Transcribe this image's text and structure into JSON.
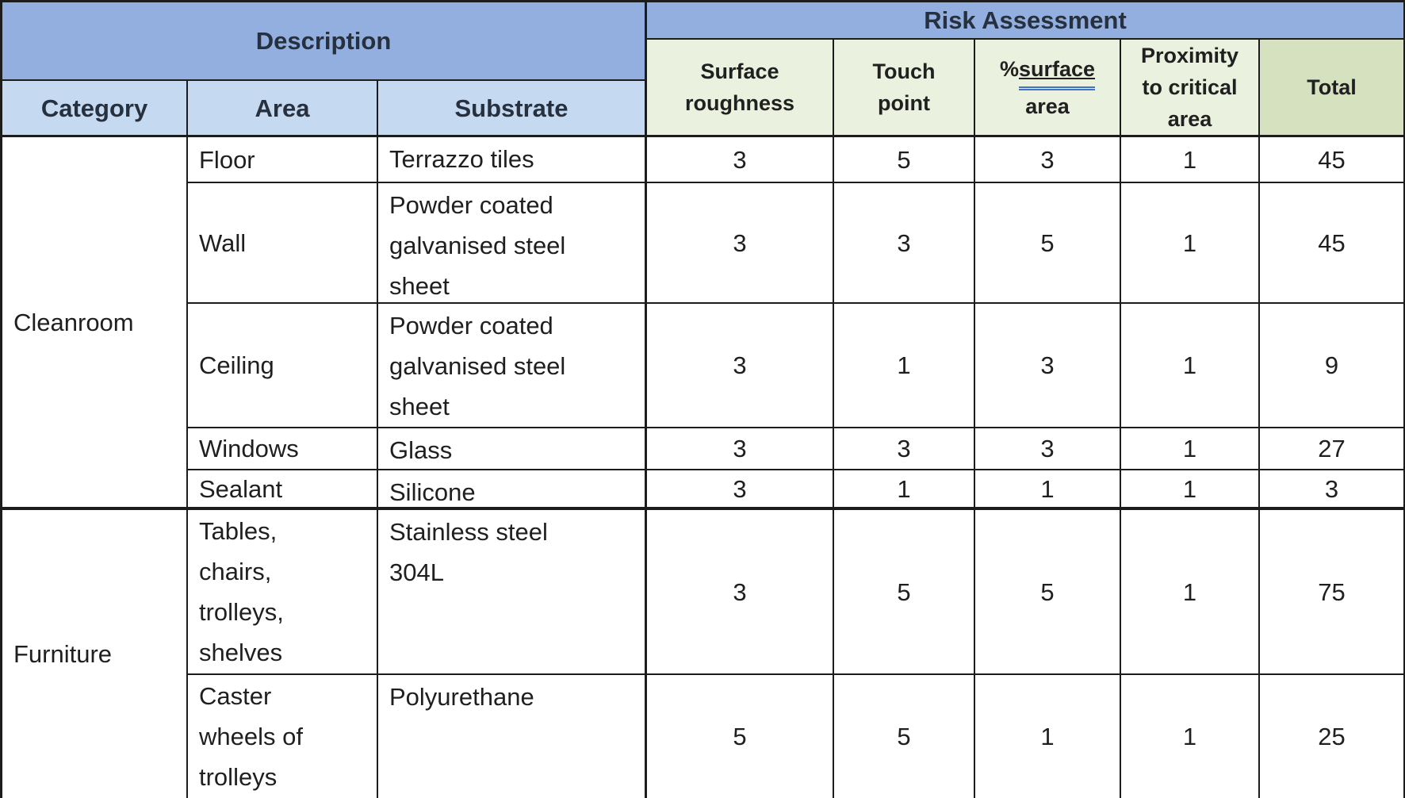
{
  "colors": {
    "header-blue": "#92AFDF",
    "subheader-blue": "#C5D9F1",
    "subheader-green": "#EAF1DE",
    "total-green": "#D6E2BF",
    "border": "#1C1C1C",
    "text": "#1F1F1F",
    "grammar-blue": "#4472C4",
    "cell-bg": "#FFFFFF"
  },
  "header": {
    "description": "Description",
    "risk_assessment": "Risk Assessment",
    "category": "Category",
    "area": "Area",
    "substrate": "Substrate",
    "surface_roughness": "Surface\nroughness",
    "touch_point": "Touch\npoint",
    "pct_surface": {
      "prefix": "% ",
      "underlined_word": "surface",
      "line2": "area"
    },
    "proximity": "Proximity\nto critical\narea",
    "total": "Total"
  },
  "groups": [
    {
      "category": "Cleanroom"
    },
    {
      "category": "Furniture"
    }
  ],
  "rows": [
    {
      "area": "Floor",
      "substrate": "Terrazzo tiles",
      "surface_roughness": 3,
      "touch_point": 5,
      "pct_surface_area": 3,
      "proximity": 1,
      "total": 45
    },
    {
      "area": "Wall",
      "substrate": "Powder coated\ngalvanised steel\nsheet",
      "surface_roughness": 3,
      "touch_point": 3,
      "pct_surface_area": 5,
      "proximity": 1,
      "total": 45
    },
    {
      "area": "Ceiling",
      "substrate": "Powder coated\ngalvanised steel\nsheet",
      "surface_roughness": 3,
      "touch_point": 1,
      "pct_surface_area": 3,
      "proximity": 1,
      "total": 9
    },
    {
      "area": "Windows",
      "substrate": "Glass",
      "surface_roughness": 3,
      "touch_point": 3,
      "pct_surface_area": 3,
      "proximity": 1,
      "total": 27
    },
    {
      "area": "Sealant",
      "substrate": "Silicone",
      "surface_roughness": 3,
      "touch_point": 1,
      "pct_surface_area": 1,
      "proximity": 1,
      "total": 3
    },
    {
      "area": "Tables,\nchairs,\ntrolleys,\nshelves",
      "substrate": "Stainless steel\n304L",
      "surface_roughness": 3,
      "touch_point": 5,
      "pct_surface_area": 5,
      "proximity": 1,
      "total": 75
    },
    {
      "area": "Caster\nwheels of\ntrolleys",
      "substrate": "Polyurethane",
      "surface_roughness": 5,
      "touch_point": 5,
      "pct_surface_area": 1,
      "proximity": 1,
      "total": 25
    }
  ]
}
